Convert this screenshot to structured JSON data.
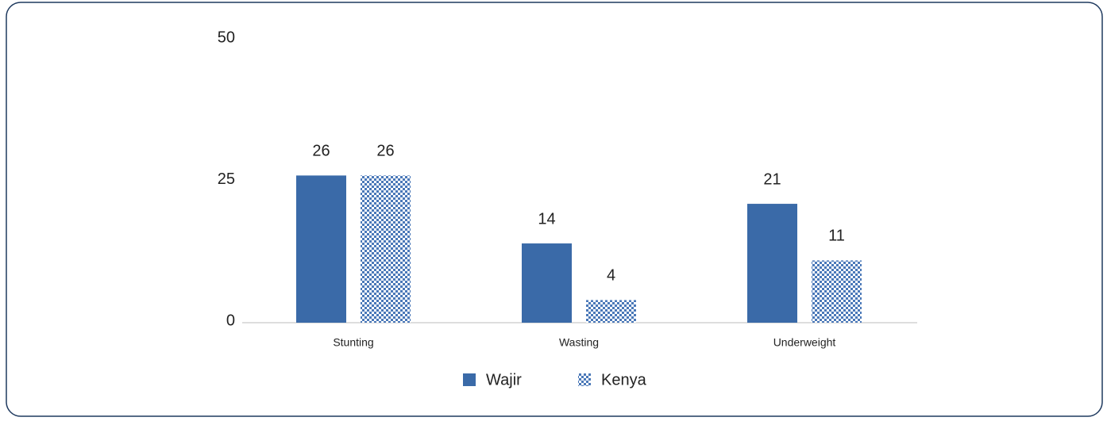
{
  "chart_data": {
    "type": "bar",
    "categories": [
      "Stunting",
      "Wasting",
      "Underweight"
    ],
    "series": [
      {
        "name": "Wajir",
        "color": "#3a6aa8",
        "values": [
          26,
          14,
          21
        ]
      },
      {
        "name": "Kenya",
        "color": "#4a78b8",
        "pattern": "checker",
        "values": [
          26,
          4,
          11
        ]
      }
    ],
    "ylim": [
      0,
      50
    ],
    "yticks": [
      0,
      25,
      50
    ],
    "grid": false,
    "legend": "bottom"
  }
}
